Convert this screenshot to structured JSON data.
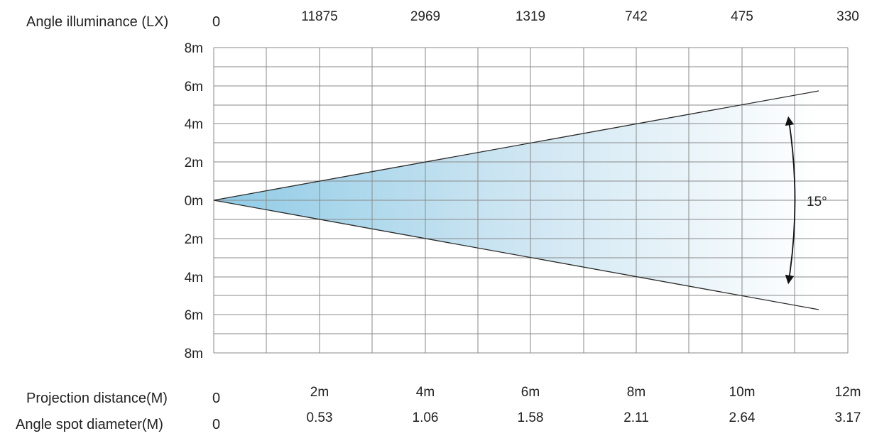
{
  "diagram": {
    "angle_illuminance": {
      "label": "Angle illuminance (LX)",
      "zero": "0",
      "values": [
        "11875",
        "2969",
        "1319",
        "742",
        "475",
        "330"
      ]
    },
    "y_ticks": [
      "8m",
      "6m",
      "4m",
      "2m",
      "0m",
      "2m",
      "4m",
      "6m",
      "8m"
    ],
    "beam_angle_label": "15°",
    "projection_distance": {
      "label": "Projection distance(M)",
      "zero": "0",
      "values": [
        "2m",
        "4m",
        "6m",
        "8m",
        "10m",
        "12m"
      ]
    },
    "spot_diameter": {
      "label": "Angle spot diameter(M)",
      "zero": "0",
      "values": [
        "0.53",
        "1.06",
        "1.58",
        "2.11",
        "2.64",
        "3.17"
      ]
    },
    "colors": {
      "beam_near": "#8fcbe6",
      "beam_far": "#ffffff",
      "grid": "#8a8a8a",
      "edge": "#2a2a2a"
    }
  }
}
